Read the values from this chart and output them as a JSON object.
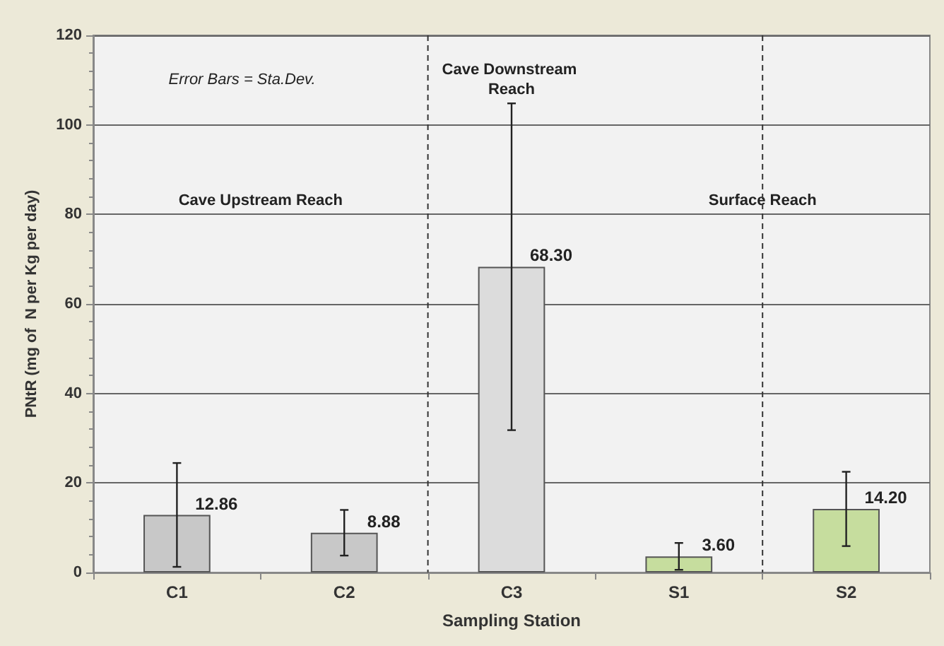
{
  "chart_data": {
    "type": "bar",
    "xlabel": "Sampling Station",
    "ylabel": "PNtR (mg of  N per Kg per day)",
    "categories": [
      "C1",
      "C2",
      "C3",
      "S1",
      "S2"
    ],
    "values": [
      12.86,
      8.88,
      68.3,
      3.6,
      14.2
    ],
    "value_labels": [
      "12.86",
      "8.88",
      "68.30",
      "3.60",
      "14.20"
    ],
    "errors": [
      11.6,
      5.1,
      36.5,
      3.0,
      8.3
    ],
    "colors": [
      "#c8c8c8",
      "#c8c8c8",
      "#dcdcdc",
      "#c6dd9e",
      "#c6dd9e"
    ],
    "ylim": [
      0,
      120
    ],
    "yticks": [
      0,
      20,
      40,
      60,
      80,
      100,
      120
    ],
    "grid": "y",
    "annotations": [
      "Error Bars = Sta.Dev.",
      "Cave Upstream Reach",
      "Cave Downstream Reach",
      "Surface Reach"
    ]
  }
}
